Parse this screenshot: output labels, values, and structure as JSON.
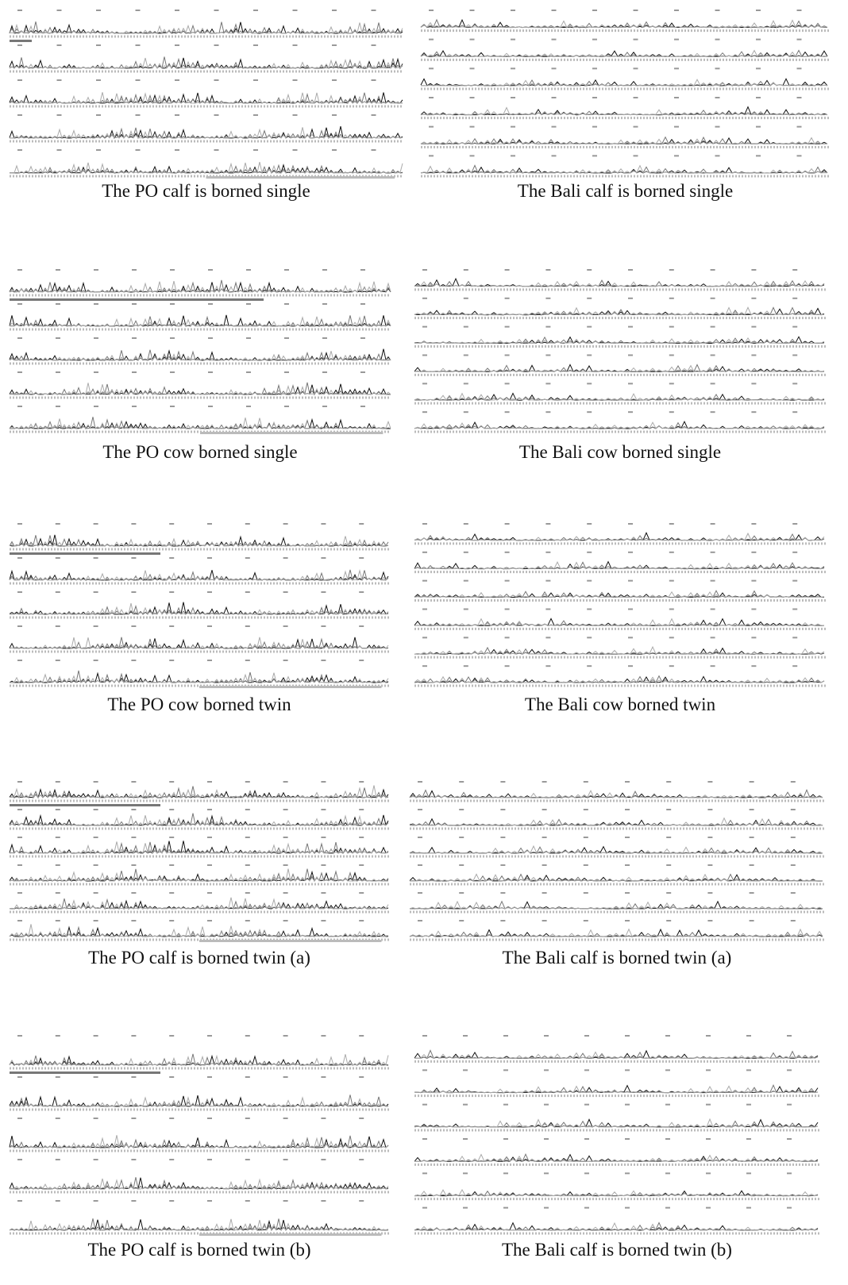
{
  "panels": [
    {
      "caption": "The PO calf is borned single"
    },
    {
      "caption": "The Bali calf is borned single"
    },
    {
      "caption": "The PO cow borned single"
    },
    {
      "caption": "The Bali cow borned single"
    },
    {
      "caption": "The PO cow borned twin"
    },
    {
      "caption": "The Bali cow borned twin"
    },
    {
      "caption": "The PO calf is borned twin (a)"
    },
    {
      "caption": "The Bali calf is borned twin (a)"
    },
    {
      "caption": "The PO calf is borned twin (b)"
    },
    {
      "caption": "The Bali calf is borned twin (b)"
    }
  ]
}
